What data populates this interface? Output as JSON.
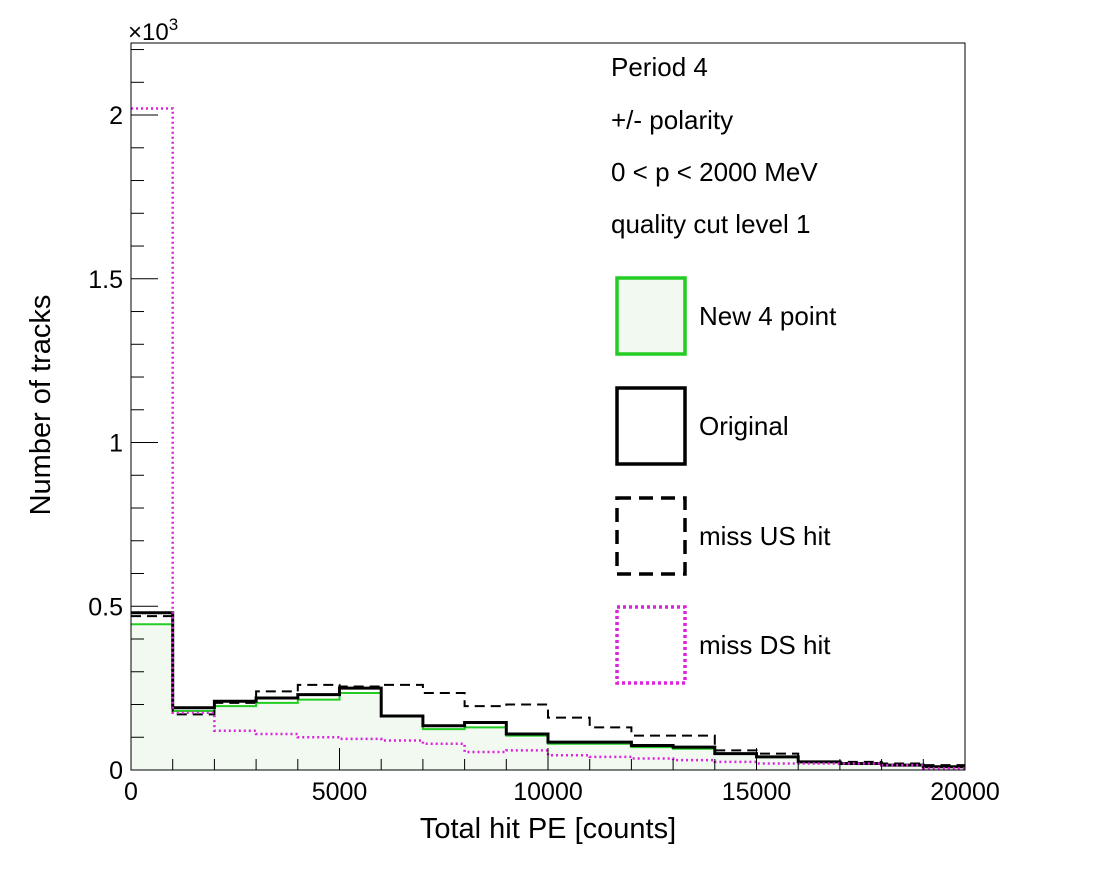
{
  "chart_data": {
    "type": "histogram-step",
    "xlabel": "Total hit PE [counts]",
    "ylabel": "Number of tracks",
    "y_multiplier_label": "×10",
    "y_multiplier_exp": "3",
    "xlim": [
      0,
      20000
    ],
    "ylim": [
      0,
      2.22
    ],
    "x_ticks": [
      0,
      5000,
      10000,
      15000,
      20000
    ],
    "x_tick_labels": [
      "0",
      "5000",
      "10000",
      "15000",
      "20000"
    ],
    "y_ticks": [
      0,
      0.5,
      1,
      1.5,
      2
    ],
    "y_tick_labels": [
      "0",
      "0.5",
      "1",
      "1.5",
      "2"
    ],
    "bin_edges": [
      0,
      1000,
      2000,
      3000,
      4000,
      5000,
      6000,
      7000,
      8000,
      9000,
      10000,
      11000,
      12000,
      13000,
      14000,
      15000,
      16000,
      17000,
      18000,
      19000,
      20000
    ],
    "annotations": [
      "Period 4",
      "+/- polarity",
      "0 < p < 2000 MeV",
      "quality cut level 1"
    ],
    "series": [
      {
        "name": "New 4 point",
        "color": "#22cc22",
        "fill": "#f1f9f1",
        "dash": "",
        "width": 2,
        "values": [
          0.445,
          0.18,
          0.195,
          0.205,
          0.215,
          0.235,
          0.165,
          0.125,
          0.13,
          0.105,
          0.08,
          0.08,
          0.07,
          0.065,
          0.05,
          0.04,
          0.025,
          0.02,
          0.015,
          0.01
        ]
      },
      {
        "name": "Original",
        "color": "#000000",
        "fill": "none",
        "dash": "",
        "width": 3,
        "values": [
          0.48,
          0.19,
          0.21,
          0.22,
          0.23,
          0.25,
          0.165,
          0.135,
          0.145,
          0.11,
          0.085,
          0.085,
          0.075,
          0.07,
          0.05,
          0.04,
          0.025,
          0.02,
          0.015,
          0.01
        ]
      },
      {
        "name": "miss US hit",
        "color": "#000000",
        "fill": "none",
        "dash": "10,6",
        "width": 2,
        "values": [
          0.47,
          0.17,
          0.205,
          0.24,
          0.26,
          0.255,
          0.26,
          0.235,
          0.195,
          0.2,
          0.16,
          0.13,
          0.105,
          0.105,
          0.06,
          0.05,
          0.025,
          0.025,
          0.02,
          0.015
        ]
      },
      {
        "name": "miss DS hit",
        "color": "#dd22dd",
        "fill": "none",
        "dash": "2,3",
        "width": 2.5,
        "values": [
          2.02,
          0.175,
          0.12,
          0.11,
          0.1,
          0.095,
          0.09,
          0.08,
          0.055,
          0.06,
          0.045,
          0.04,
          0.035,
          0.03,
          0.025,
          0.02,
          0.02,
          0.02,
          0.015,
          0.005
        ]
      }
    ]
  }
}
